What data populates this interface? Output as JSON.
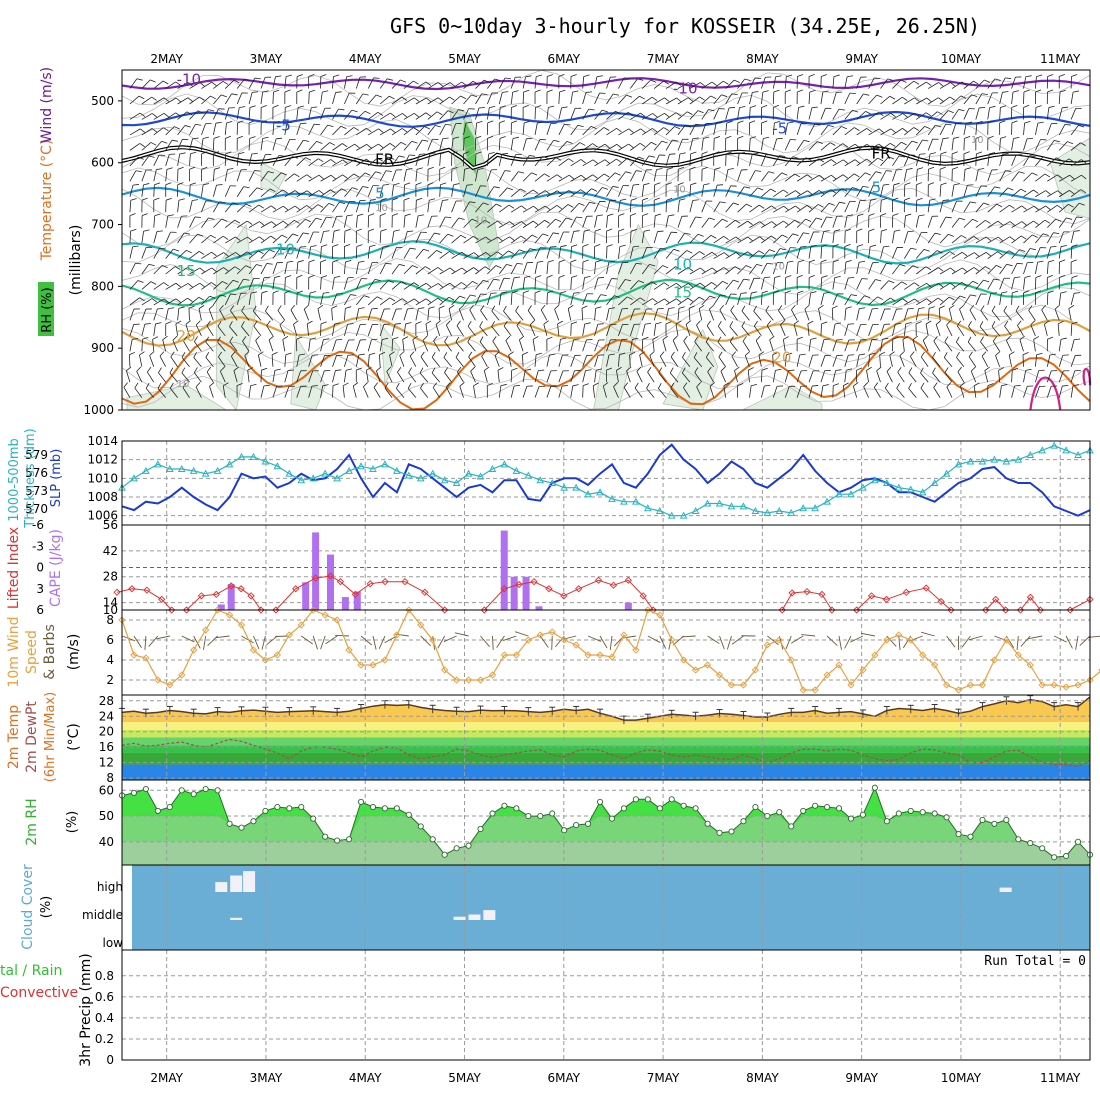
{
  "title": "GFS 0~10day 3-hourly for KOSSEIR (34.25E, 26.25N)",
  "colors": {
    "rh": "#3db43d",
    "temperature": "#e07020",
    "wind": "#6a1a9a",
    "slp": "#1a3ad0",
    "thickness": "#2ab4c0",
    "lifted": "#e03030",
    "cape": "#b070f0",
    "wind10": "#e8a040",
    "cloud": "#6aaed6",
    "precip_total": "#30c030",
    "precip_conv": "#e03030"
  },
  "chart_data": [
    {
      "type": "contour",
      "panel": "upper-air",
      "x": [
        "2MAY",
        "3MAY",
        "4MAY",
        "5MAY",
        "6MAY",
        "7MAY",
        "8MAY",
        "9MAY",
        "10MAY",
        "11MAY"
      ],
      "ylabel": [
        "RH (%)",
        "Temperature (°C)",
        "Wind (m/s)",
        "(millibars)"
      ],
      "yticks": [
        "500",
        "600",
        "700",
        "800",
        "900",
        "1000"
      ],
      "ylim": [
        1000,
        450
      ],
      "contour_labels": [
        {
          "text": "-10",
          "kind": "temperature",
          "date": "2MAY",
          "p": 465
        },
        {
          "text": "-10",
          "kind": "temperature",
          "date": "7MAY",
          "p": 480
        },
        {
          "text": "-5",
          "kind": "temperature",
          "date": "3MAY",
          "p": 540
        },
        {
          "text": "-5",
          "kind": "temperature",
          "date": "8MAY",
          "p": 545
        },
        {
          "text": "FR",
          "kind": "freezing",
          "date": "4MAY",
          "p": 595
        },
        {
          "text": "FR",
          "kind": "freezing",
          "date": "9MAY",
          "p": 585
        },
        {
          "text": "5",
          "kind": "temperature",
          "date": "4MAY",
          "p": 650
        },
        {
          "text": "5",
          "kind": "temperature",
          "date": "9MAY",
          "p": 640
        },
        {
          "text": "10",
          "kind": "temperature",
          "date": "3MAY",
          "p": 740
        },
        {
          "text": "10",
          "kind": "temperature",
          "date": "7MAY",
          "p": 765
        },
        {
          "text": "15",
          "kind": "temperature",
          "date": "2MAY",
          "p": 775
        },
        {
          "text": "15",
          "kind": "temperature",
          "date": "7MAY",
          "p": 810
        },
        {
          "text": "20",
          "kind": "temperature",
          "date": "2MAY",
          "p": 880
        },
        {
          "text": "20",
          "kind": "temperature",
          "date": "8MAY",
          "p": 915
        },
        {
          "text": "10",
          "kind": "rh",
          "date": "2MAY",
          "p": 955
        },
        {
          "text": "10",
          "kind": "rh",
          "date": "4MAY",
          "p": 670
        },
        {
          "text": "10",
          "kind": "rh",
          "date": "5MAY",
          "p": 690
        },
        {
          "text": "10",
          "kind": "rh",
          "date": "7MAY",
          "p": 640
        },
        {
          "text": "10",
          "kind": "rh",
          "date": "8MAY",
          "p": 765
        },
        {
          "text": "10",
          "kind": "rh",
          "date": "10MAY",
          "p": 560
        }
      ]
    },
    {
      "type": "line",
      "panel": "slp-thickness",
      "ylabel_left": "1000-500mb Thickness (dm)",
      "ylabel_right": "SLP (mb)",
      "thickness_ticks": [
        "570",
        "573",
        "576",
        "579"
      ],
      "slp_ticks": [
        "1006",
        "1008",
        "1010",
        "1012",
        "1014"
      ],
      "ylim_slp": [
        1005,
        1014
      ],
      "series": [
        {
          "name": "SLP (mb)",
          "values": [
            1007.0,
            1006.6,
            1007.5,
            1007.3,
            1008.0,
            1009.0,
            1008.0,
            1007.2,
            1006.6,
            1008.0,
            1010.5,
            1010.0,
            1010.2,
            1009.0,
            1009.5,
            1010.5,
            1009.8,
            1010.0,
            1011.0,
            1012.5,
            1010.0,
            1008.0,
            1009.5,
            1008.5,
            1011.5,
            1011.0,
            1010.0,
            1009.0,
            1008.0,
            1009.0,
            1009.3,
            1008.5,
            1009.8,
            1009.8,
            1007.8,
            1007.6,
            1009.5,
            1010.0,
            1010.0,
            1009.3,
            1010.5,
            1011.5,
            1009.5,
            1009.0,
            1010.5,
            1012.5,
            1013.6,
            1012.0,
            1011.0,
            1009.5,
            1010.5,
            1011.8,
            1011.0,
            1009.5,
            1009.0,
            1010.0,
            1011.0,
            1012.5,
            1010.8,
            1009.5,
            1008.5,
            1009.0,
            1009.8,
            1010.0,
            1009.5,
            1008.5,
            1008.5,
            1008.0,
            1007.5,
            1008.5,
            1009.5,
            1010.0,
            1011.0,
            1011.2,
            1010.0,
            1009.5,
            1009.5,
            1008.5,
            1007.0,
            1006.5,
            1006.0,
            1006.6
          ]
        },
        {
          "name": "1000-500mb Thickness (dm)",
          "values": [
            1009.0,
            1010.0,
            1010.8,
            1011.5,
            1011.0,
            1011.0,
            1010.8,
            1010.5,
            1010.8,
            1011.5,
            1012.3,
            1012.3,
            1011.8,
            1011.3,
            1010.5,
            1009.8,
            1010.0,
            1010.5,
            1010.0,
            1010.8,
            1011.3,
            1011.0,
            1011.5,
            1010.8,
            1010.3,
            1010.0,
            1010.5,
            1009.8,
            1009.5,
            1010.5,
            1010.2,
            1011.0,
            1011.5,
            1010.8,
            1010.3,
            1009.8,
            1009.5,
            1009.0,
            1009.0,
            1008.3,
            1008.5,
            1007.8,
            1007.5,
            1007.5,
            1006.8,
            1006.5,
            1006.0,
            1006.0,
            1006.5,
            1007.3,
            1007.3,
            1007.0,
            1007.0,
            1006.5,
            1006.3,
            1006.5,
            1006.3,
            1006.8,
            1006.8,
            1007.5,
            1008.3,
            1008.3,
            1009.0,
            1009.8,
            1009.5,
            1009.0,
            1008.8,
            1008.5,
            1009.5,
            1010.5,
            1011.5,
            1011.8,
            1011.8,
            1012.0,
            1011.8,
            1012.0,
            1012.5,
            1013.0,
            1013.5,
            1013.0,
            1012.5,
            1013.0
          ]
        }
      ]
    },
    {
      "type": "bar+line",
      "panel": "stability",
      "ylabel_left": "Lifted Index",
      "ylabel_right": "CAPE (J/kg)",
      "li_ticks": [
        "-6",
        "-3",
        "0",
        "3",
        "6"
      ],
      "cape_ticks": [
        "10",
        "14",
        "28",
        "42",
        "56"
      ],
      "cape_bars": [
        {
          "date_index": 2.55,
          "value": 13
        },
        {
          "date_index": 2.65,
          "value": 24
        },
        {
          "date_index": 3.4,
          "value": 25
        },
        {
          "date_index": 3.5,
          "value": 52
        },
        {
          "date_index": 3.65,
          "value": 40
        },
        {
          "date_index": 3.8,
          "value": 17
        },
        {
          "date_index": 3.92,
          "value": 20
        },
        {
          "date_index": 5.4,
          "value": 53
        },
        {
          "date_index": 5.5,
          "value": 28
        },
        {
          "date_index": 5.62,
          "value": 28
        },
        {
          "date_index": 5.75,
          "value": 12
        },
        {
          "date_index": 6.65,
          "value": 14
        }
      ],
      "lifted_index_segments": [
        [
          [
            1.5,
            3.5
          ],
          [
            1.65,
            3.0
          ],
          [
            1.8,
            3.2
          ],
          [
            1.95,
            4.5
          ],
          [
            2.05,
            6.0
          ]
        ],
        [
          [
            2.2,
            6.0
          ],
          [
            2.35,
            4.0
          ],
          [
            2.5,
            3.8
          ],
          [
            2.65,
            2.6
          ],
          [
            2.75,
            3.0
          ],
          [
            2.85,
            4.0
          ],
          [
            2.95,
            6.0
          ]
        ],
        [
          [
            3.1,
            6.0
          ],
          [
            3.3,
            3.0
          ],
          [
            3.5,
            1.5
          ],
          [
            3.65,
            1.2
          ],
          [
            3.75,
            2.0
          ],
          [
            3.9,
            3.8
          ],
          [
            4.05,
            2.3
          ],
          [
            4.2,
            2.0
          ],
          [
            4.4,
            2.0
          ],
          [
            4.6,
            3.5
          ],
          [
            4.8,
            6.0
          ]
        ],
        [
          [
            5.2,
            6.0
          ],
          [
            5.4,
            3.0
          ],
          [
            5.55,
            2.4
          ],
          [
            5.7,
            2.0
          ],
          [
            5.85,
            3.0
          ],
          [
            6.0,
            4.0
          ],
          [
            6.15,
            3.0
          ],
          [
            6.35,
            1.8
          ],
          [
            6.5,
            2.5
          ],
          [
            6.65,
            1.8
          ],
          [
            6.8,
            4.0
          ],
          [
            6.9,
            6.0
          ]
        ],
        [
          [
            8.2,
            6.0
          ],
          [
            8.3,
            3.6
          ],
          [
            8.45,
            3.4
          ],
          [
            8.6,
            3.8
          ],
          [
            8.7,
            6.0
          ]
        ],
        [
          [
            8.95,
            6.0
          ],
          [
            9.1,
            4.0
          ],
          [
            9.25,
            4.5
          ],
          [
            9.45,
            3.5
          ],
          [
            9.65,
            2.9
          ],
          [
            9.8,
            4.8
          ],
          [
            9.9,
            6.0
          ]
        ],
        [
          [
            10.25,
            6.0
          ],
          [
            10.35,
            4.5
          ],
          [
            10.45,
            6.0
          ]
        ],
        [
          [
            10.6,
            6.0
          ],
          [
            10.7,
            4.2
          ],
          [
            10.8,
            6.0
          ]
        ],
        [
          [
            11.1,
            6.0
          ],
          [
            11.3,
            4.5
          ]
        ]
      ]
    },
    {
      "type": "line",
      "panel": "wind10m",
      "ylabel": "10m Wind Speed & Barbs (m/s)",
      "ylabel_parts": [
        "10m Wind",
        "Speed",
        "& Barbs",
        "(m/s)"
      ],
      "yticks": [
        "2",
        "4",
        "6",
        "8"
      ],
      "ylim": [
        0.5,
        9
      ],
      "values": [
        8.0,
        4.5,
        4.2,
        2.0,
        1.5,
        2.5,
        5.0,
        7.0,
        9.0,
        8.5,
        7.5,
        5.0,
        4.0,
        4.5,
        6.5,
        7.5,
        9.0,
        8.5,
        8.0,
        5.0,
        3.5,
        3.5,
        4.0,
        6.5,
        9.0,
        7.5,
        6.0,
        3.0,
        2.0,
        2.0,
        2.0,
        2.5,
        4.5,
        4.5,
        6.0,
        6.5,
        6.8,
        6.0,
        5.5,
        4.5,
        4.5,
        4.3,
        6.5,
        5.0,
        9.0,
        8.5,
        6.0,
        4.0,
        3.0,
        3.5,
        2.5,
        1.5,
        1.5,
        3.0,
        5.5,
        6.0,
        4.0,
        1.0,
        1.0,
        2.5,
        3.5,
        1.5,
        3.0,
        4.5,
        6.0,
        6.5,
        6.0,
        4.5,
        3.5,
        1.5,
        1.0,
        1.5,
        1.5,
        4.0,
        6.0,
        4.5,
        3.5,
        1.5,
        1.5,
        1.3,
        1.5,
        2.0,
        3.0,
        4.5
      ]
    },
    {
      "type": "area",
      "panel": "temperature2m",
      "ylabel": "2m Temp 2m DewPt (6hr Min/Max) (°C)",
      "ylabel_parts": [
        "2m Temp",
        "2m DewPt",
        "(6hr Min/Max)",
        "(°C)"
      ],
      "yticks": [
        "8",
        "12",
        "16",
        "20",
        "24",
        "28"
      ],
      "ylim": [
        7.5,
        29.5
      ],
      "band_colors": [
        "#2b85e6",
        "#38a838",
        "#38c04a",
        "#66d46a",
        "#c8e860",
        "#f8f080",
        "#f8c850"
      ],
      "temp": [
        25.0,
        25.3,
        24.8,
        25.0,
        25.5,
        25.2,
        24.8,
        24.6,
        25.2,
        25.0,
        25.4,
        25.6,
        25.3,
        25.0,
        25.2,
        25.3,
        25.4,
        25.2,
        25.0,
        25.3,
        26.0,
        26.6,
        27.0,
        26.8,
        27.0,
        26.3,
        25.8,
        25.5,
        25.3,
        25.2,
        25.6,
        25.4,
        25.5,
        25.4,
        25.2,
        25.0,
        25.3,
        25.8,
        25.5,
        25.8,
        24.8,
        24.0,
        23.0,
        23.0,
        23.5,
        24.0,
        24.5,
        24.3,
        24.0,
        24.3,
        24.7,
        24.5,
        24.2,
        23.8,
        23.8,
        24.5,
        25.0,
        25.0,
        25.5,
        24.8,
        25.0,
        25.2,
        24.6,
        24.0,
        25.5,
        26.0,
        25.8,
        25.5,
        26.0,
        25.5,
        24.8,
        25.3,
        26.5,
        27.2,
        28.0,
        27.5,
        28.3,
        27.8,
        26.5,
        27.0,
        26.5,
        29.0
      ],
      "dewpoint": [
        16.5,
        17.0,
        16.3,
        16.5,
        17.0,
        17.3,
        16.5,
        16.0,
        17.0,
        18.0,
        17.5,
        16.5,
        15.5,
        14.5,
        13.0,
        15.0,
        16.0,
        16.0,
        15.5,
        14.5,
        13.5,
        15.0,
        16.0,
        15.8,
        14.0,
        13.0,
        13.5,
        14.0,
        15.5,
        15.0,
        14.0,
        13.3,
        14.0,
        14.5,
        15.0,
        15.3,
        14.0,
        13.5,
        15.0,
        15.5,
        15.2,
        14.0,
        13.0,
        14.5,
        15.3,
        15.0,
        14.0,
        13.5,
        14.0,
        13.5,
        13.0,
        12.8,
        14.0,
        13.0,
        12.0,
        13.0,
        14.5,
        15.5,
        15.5,
        15.0,
        15.5,
        15.2,
        14.0,
        13.0,
        12.5,
        12.8,
        14.5,
        15.5,
        15.3,
        14.5,
        14.0,
        12.0,
        12.0,
        13.5,
        15.0,
        15.2,
        13.5,
        12.0,
        11.5,
        11.5,
        11.0,
        12.5
      ]
    },
    {
      "type": "area",
      "panel": "rh2m",
      "ylabel": "2m RH (%)",
      "yticks": [
        "40",
        "50",
        "60"
      ],
      "ylim": [
        31,
        64
      ],
      "values": [
        58.0,
        59.0,
        60.5,
        52.0,
        53.5,
        60.0,
        58.5,
        60.5,
        60.0,
        47.0,
        45.5,
        48.0,
        52.0,
        53.5,
        53.0,
        53.5,
        49.0,
        42.0,
        40.5,
        41.0,
        55.5,
        53.5,
        53.0,
        53.0,
        50.5,
        46.0,
        41.0,
        35.0,
        37.5,
        38.5,
        45.0,
        51.0,
        54.0,
        53.0,
        50.0,
        50.0,
        51.0,
        44.5,
        46.5,
        47.0,
        55.5,
        49.0,
        53.0,
        56.5,
        56.5,
        53.0,
        56.5,
        54.0,
        53.0,
        47.0,
        43.5,
        44.0,
        48.0,
        53.5,
        50.0,
        51.5,
        46.0,
        52.0,
        54.0,
        53.5,
        53.0,
        49.0,
        50.5,
        61.0,
        48.0,
        51.0,
        52.0,
        51.5,
        51.0,
        49.5,
        43.0,
        42.0,
        48.5,
        47.0,
        48.5,
        41.0,
        39.5,
        37.5,
        34.0,
        34.5,
        40.0,
        35.0
      ]
    },
    {
      "type": "heatmap",
      "panel": "cloud",
      "ylabel": "Cloud Cover (%)",
      "ylabel_parts": [
        "Cloud Cover",
        "(%)"
      ],
      "ytick_labels": [
        "high",
        "middle",
        "low"
      ],
      "cells": [
        {
          "date_index": 2.55,
          "level": "high",
          "fraction": 0.45
        },
        {
          "date_index": 2.7,
          "level": "high",
          "fraction": 0.75
        },
        {
          "date_index": 2.83,
          "level": "high",
          "fraction": 0.95
        },
        {
          "date_index": 2.7,
          "level": "middle",
          "fraction": 0.1
        },
        {
          "date_index": 4.95,
          "level": "middle",
          "fraction": 0.15
        },
        {
          "date_index": 5.1,
          "level": "middle",
          "fraction": 0.25
        },
        {
          "date_index": 5.25,
          "level": "middle",
          "fraction": 0.45
        },
        {
          "date_index": 10.45,
          "level": "high",
          "fraction": 0.2
        }
      ]
    },
    {
      "type": "bar",
      "panel": "precip",
      "ylabel": "Total / Rain Convective 3hr Precip (mm)",
      "ylabel_parts": [
        "tal / Rain",
        "Convective",
        "3hr Precip (mm)"
      ],
      "yticks": [
        "0",
        "0.2",
        "0.4",
        "0.6",
        "0.8"
      ],
      "ylim": [
        0,
        0.95
      ],
      "values": [],
      "run_total_text": "Run Total = 0"
    }
  ]
}
